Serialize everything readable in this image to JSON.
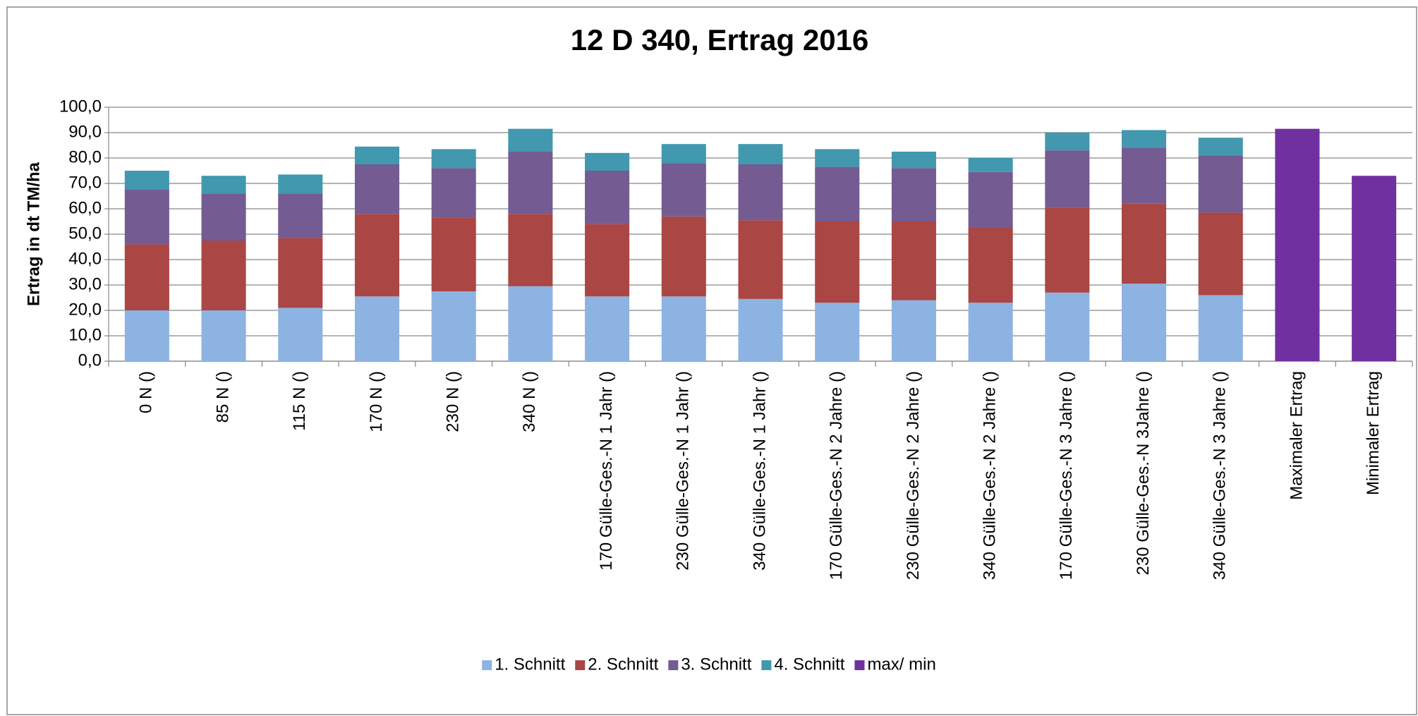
{
  "chart_data": {
    "type": "bar",
    "stacked": true,
    "title": "12 D 340, Ertrag 2016",
    "y_label": "Ertrag in dt TM/ha",
    "categories": [
      "0 N ()",
      "85 N ()",
      "115 N ()",
      "170 N ()",
      "230 N ()",
      "340 N ()",
      "170 Gülle-Ges.-N  1 Jahr ()",
      "230 Gülle-Ges.-N 1 Jahr ()",
      "340 Gülle-Ges.-N 1 Jahr ()",
      "170 Gülle-Ges.-N 2 Jahre ()",
      "230 Gülle-Ges.-N 2 Jahre ()",
      "340 Gülle-Ges.-N 2 Jahre ()",
      "170 Gülle-Ges.-N 3 Jahre ()",
      "230 Gülle-Ges.-N 3Jahre ()",
      "340 Gülle-Ges.-N 3 Jahre ()",
      "Maximaler Ertrag",
      "Minimaler Ertrag"
    ],
    "series": [
      {
        "name": "1. Schnitt",
        "color": "#8db3e2",
        "values": [
          20,
          20,
          21,
          25.5,
          27.5,
          29.5,
          25.5,
          25.5,
          24.5,
          23,
          24,
          23,
          27,
          30.5,
          26,
          null,
          null
        ]
      },
      {
        "name": "2. Schnitt",
        "color": "#aa4644",
        "values": [
          26,
          27.5,
          27.5,
          32.5,
          29,
          28.5,
          28.5,
          31.5,
          31,
          32,
          31,
          29.5,
          33.5,
          31.5,
          32.5,
          null,
          null
        ]
      },
      {
        "name": "3. Schnitt",
        "color": "#745b92",
        "values": [
          21.5,
          18.5,
          17.5,
          19.5,
          19.5,
          24.5,
          21,
          21,
          22,
          21.5,
          21,
          22,
          22.5,
          22,
          22.5,
          null,
          null
        ]
      },
      {
        "name": "4. Schnitt",
        "color": "#4298ae",
        "values": [
          7.5,
          7,
          7.5,
          7,
          7.5,
          9,
          7,
          7.5,
          8,
          7,
          6.5,
          5.5,
          7,
          7,
          7,
          null,
          null
        ]
      },
      {
        "name": "max/ min",
        "color": "#7030a0",
        "values": [
          null,
          null,
          null,
          null,
          null,
          null,
          null,
          null,
          null,
          null,
          null,
          null,
          null,
          null,
          null,
          91.5,
          73
        ]
      }
    ],
    "ylim": [
      0,
      100
    ],
    "yticks": [
      {
        "value": 0,
        "label": "0,0"
      },
      {
        "value": 10,
        "label": "10,0"
      },
      {
        "value": 20,
        "label": "20,0"
      },
      {
        "value": 30,
        "label": "30,0"
      },
      {
        "value": 40,
        "label": "40,0"
      },
      {
        "value": 50,
        "label": "50,0"
      },
      {
        "value": 60,
        "label": "60,0"
      },
      {
        "value": 70,
        "label": "70,0"
      },
      {
        "value": 80,
        "label": "80,0"
      },
      {
        "value": 90,
        "label": "90,0"
      },
      {
        "value": 100,
        "label": "100,0"
      }
    ],
    "grid": true,
    "legend": "bottom"
  }
}
